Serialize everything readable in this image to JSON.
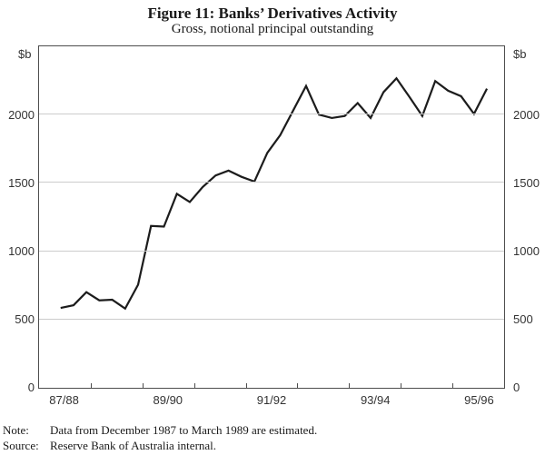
{
  "page": {
    "title": "Figure 11: Banks’ Derivatives Activity",
    "subtitle": "Gross, notional principal outstanding",
    "unit_left": "$b",
    "unit_right": "$b",
    "note_label": "Note:",
    "note_text": "Data from December 1987 to March 1989 are estimated.",
    "source_label": "Source:",
    "source_text": "Reserve Bank of Australia internal."
  },
  "chart_data": {
    "type": "line",
    "title": "Figure 11: Banks’ Derivatives Activity",
    "subtitle": "Gross, notional principal outstanding",
    "ylabel": "$b",
    "ylim": [
      0,
      2500
    ],
    "y_ticks": [
      0,
      500,
      1000,
      1500,
      2000
    ],
    "gridline_values": [
      500,
      1000,
      1500,
      2000
    ],
    "grid": "horizontal",
    "legend": "none",
    "x_tick_labels": [
      "87/88",
      "89/90",
      "91/92",
      "93/94",
      "95/96"
    ],
    "x_axis": {
      "span_years": 9,
      "start_label": "July 1987",
      "first_point_offset_years": 0.4167,
      "point_step_years": 0.25
    },
    "categories": [
      "Dec 1987",
      "Mar 1988",
      "Jun 1988",
      "Sep 1988",
      "Dec 1988",
      "Mar 1989",
      "Jun 1989",
      "Sep 1989",
      "Dec 1989",
      "Mar 1990",
      "Jun 1990",
      "Sep 1990",
      "Dec 1990",
      "Mar 1991",
      "Jun 1991",
      "Sep 1991",
      "Dec 1991",
      "Mar 1992",
      "Jun 1992",
      "Sep 1992",
      "Dec 1992",
      "Mar 1993",
      "Jun 1993",
      "Sep 1993",
      "Dec 1993",
      "Mar 1994",
      "Jun 1994",
      "Sep 1994",
      "Dec 1994",
      "Mar 1995",
      "Jun 1995",
      "Sep 1995",
      "Dec 1995",
      "Mar 1996"
    ],
    "values": [
      585,
      605,
      700,
      640,
      645,
      580,
      755,
      1185,
      1180,
      1420,
      1360,
      1470,
      1555,
      1590,
      1545,
      1510,
      1720,
      1850,
      2030,
      2210,
      2000,
      1975,
      1990,
      2085,
      1975,
      2165,
      2265,
      2130,
      1990,
      2245,
      2175,
      2135,
      2005,
      2190
    ],
    "colors": {
      "line": "#1c1c1c",
      "grid": "#cccccc",
      "frame": "#4d4d4d",
      "axis_text": "#333333",
      "title_text": "#1a1a1a"
    }
  }
}
